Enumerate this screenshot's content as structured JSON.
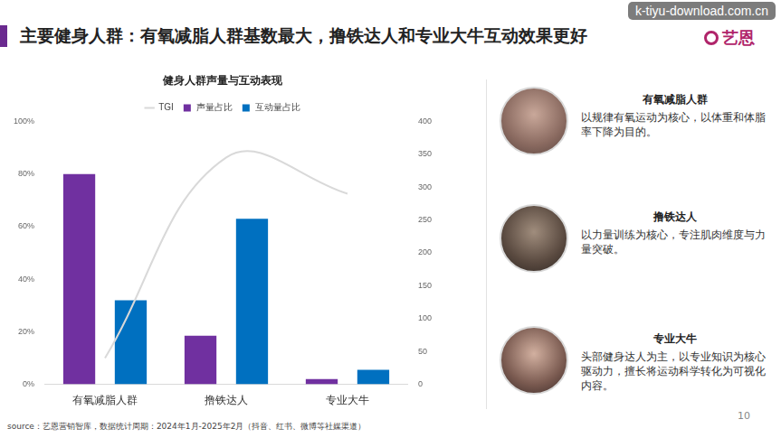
{
  "header": {
    "title": "主要健身人群：有氧减脂人群基数最大，撸铁达人和专业大牛互动效果更好"
  },
  "logo": "艺恩",
  "watermark": "k-tiyu-download.com.cn",
  "chart_data": {
    "type": "bar",
    "title": "健身人群声量与互动表现",
    "categories": [
      "有氧减脂人群",
      "撸铁达人",
      "专业大牛"
    ],
    "series": [
      {
        "name": "声量占比",
        "color": "#7030a0",
        "values": [
          80,
          18.5,
          2
        ]
      },
      {
        "name": "互动量占比",
        "color": "#0070c0",
        "values": [
          32,
          63,
          5.5
        ]
      },
      {
        "name": "TGI",
        "type": "line",
        "color": "#d9d9d9",
        "axis": "y2",
        "values": [
          40,
          345,
          290
        ]
      }
    ],
    "ylim": [
      0,
      100
    ],
    "yticks": [
      {
        "value": 0,
        "label": "0%"
      },
      {
        "value": 20,
        "label": "20%"
      },
      {
        "value": 40,
        "label": "40%"
      },
      {
        "value": 60,
        "label": "60%"
      },
      {
        "value": 80,
        "label": "80%"
      },
      {
        "value": 100,
        "label": "100%"
      }
    ],
    "y2lim": [
      0,
      400
    ],
    "y2ticks": [
      0,
      50,
      100,
      150,
      200,
      250,
      300,
      350,
      400
    ],
    "grid": false,
    "legend": "top"
  },
  "personas": [
    {
      "name": "有氧减脂人群",
      "description": "以规律有氧运动为核心，以体重和体脂率下降为目的。"
    },
    {
      "name": "撸铁达人",
      "description": "以力量训练为核心，专注肌肉维度与力量突破。"
    },
    {
      "name": "专业大牛",
      "description": "头部健身达人为主，以专业知识为核心驱动力，擅长将运动科学转化为可视化内容。"
    }
  ],
  "source": "source：艺恩营销智库，数据统计周期：2024年1月-2025年2月（抖音、红书、微博等社媒渠道）",
  "page_number": "10"
}
